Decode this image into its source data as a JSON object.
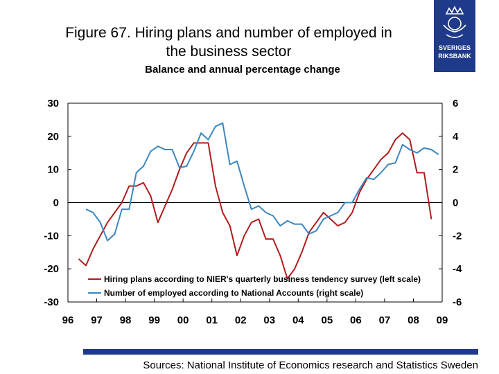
{
  "header": {
    "title_line1": "Figure 67. Hiring plans and number of employed in",
    "title_line2": "the business sector",
    "subtitle": "Balance and annual percentage change"
  },
  "logo": {
    "line1": "SVERIGES",
    "line2": "RIKSBANK",
    "color": "#1f3a8a"
  },
  "footer": {
    "sources": "Sources: National Institute of Economics research and Statistics Sweden",
    "bar_color": "#1f3a8a"
  },
  "chart_data": {
    "type": "line",
    "x_ticks": [
      "96",
      "97",
      "98",
      "99",
      "00",
      "01",
      "02",
      "03",
      "04",
      "05",
      "06",
      "07",
      "08",
      "09"
    ],
    "x_range": [
      1996,
      2009
    ],
    "y_left": {
      "range": [
        -30,
        30
      ],
      "ticks": [
        "30",
        "20",
        "10",
        "0",
        "-10",
        "-20",
        "-30"
      ]
    },
    "y_right": {
      "range": [
        -6,
        6
      ],
      "ticks": [
        "6",
        "4",
        "2",
        "0",
        "-2",
        "-4",
        "-6"
      ]
    },
    "grid": false,
    "legend_position": "bottom-left",
    "series": [
      {
        "name": "Hiring plans according to NIER's quarterly business tendency survey (left scale)",
        "axis": "left",
        "color": "#b01c1c",
        "points": [
          [
            1996.375,
            -17
          ],
          [
            1996.625,
            -19
          ],
          [
            1996.875,
            -14
          ],
          [
            1997.125,
            -10
          ],
          [
            1997.375,
            -6
          ],
          [
            1997.625,
            -3
          ],
          [
            1997.875,
            0
          ],
          [
            1998.125,
            5
          ],
          [
            1998.375,
            5
          ],
          [
            1998.625,
            6
          ],
          [
            1998.875,
            2
          ],
          [
            1999.125,
            -6
          ],
          [
            1999.375,
            -1
          ],
          [
            1999.625,
            4
          ],
          [
            1999.875,
            10
          ],
          [
            2000.125,
            15
          ],
          [
            2000.375,
            18
          ],
          [
            2000.625,
            18
          ],
          [
            2000.875,
            18
          ],
          [
            2001.125,
            5
          ],
          [
            2001.375,
            -3
          ],
          [
            2001.625,
            -7
          ],
          [
            2001.875,
            -16
          ],
          [
            2002.125,
            -10
          ],
          [
            2002.375,
            -6
          ],
          [
            2002.625,
            -5
          ],
          [
            2002.875,
            -11
          ],
          [
            2003.125,
            -11
          ],
          [
            2003.375,
            -16
          ],
          [
            2003.625,
            -23
          ],
          [
            2003.875,
            -20
          ],
          [
            2004.125,
            -15
          ],
          [
            2004.375,
            -9
          ],
          [
            2004.625,
            -6
          ],
          [
            2004.875,
            -3
          ],
          [
            2005.125,
            -5
          ],
          [
            2005.375,
            -7
          ],
          [
            2005.625,
            -6
          ],
          [
            2005.875,
            -3
          ],
          [
            2006.125,
            3
          ],
          [
            2006.375,
            7
          ],
          [
            2006.625,
            10
          ],
          [
            2006.875,
            13
          ],
          [
            2007.125,
            15
          ],
          [
            2007.375,
            19
          ],
          [
            2007.625,
            21
          ],
          [
            2007.875,
            19
          ],
          [
            2008.125,
            9
          ],
          [
            2008.375,
            9
          ],
          [
            2008.625,
            -5
          ]
        ]
      },
      {
        "name": "Number of employed according to National Accounts (right scale)",
        "axis": "right",
        "color": "#3a87c0",
        "points": [
          [
            1996.625,
            -0.4
          ],
          [
            1996.875,
            -0.6
          ],
          [
            1997.125,
            -1.2
          ],
          [
            1997.375,
            -2.3
          ],
          [
            1997.625,
            -1.9
          ],
          [
            1997.875,
            -0.4
          ],
          [
            1998.125,
            -0.4
          ],
          [
            1998.375,
            1.8
          ],
          [
            1998.625,
            2.2
          ],
          [
            1998.875,
            3.1
          ],
          [
            1999.125,
            3.4
          ],
          [
            1999.375,
            3.2
          ],
          [
            1999.625,
            3.2
          ],
          [
            1999.875,
            2.1
          ],
          [
            2000.125,
            2.2
          ],
          [
            2000.375,
            3.1
          ],
          [
            2000.625,
            4.2
          ],
          [
            2000.875,
            3.8
          ],
          [
            2001.125,
            4.6
          ],
          [
            2001.375,
            4.8
          ],
          [
            2001.625,
            2.3
          ],
          [
            2001.875,
            2.5
          ],
          [
            2002.125,
            1.0
          ],
          [
            2002.375,
            -0.4
          ],
          [
            2002.625,
            -0.2
          ],
          [
            2002.875,
            -0.6
          ],
          [
            2003.125,
            -0.8
          ],
          [
            2003.375,
            -1.4
          ],
          [
            2003.625,
            -1.1
          ],
          [
            2003.875,
            -1.3
          ],
          [
            2004.125,
            -1.3
          ],
          [
            2004.375,
            -1.9
          ],
          [
            2004.625,
            -1.7
          ],
          [
            2004.875,
            -1.0
          ],
          [
            2005.125,
            -0.8
          ],
          [
            2005.375,
            -0.6
          ],
          [
            2005.625,
            0.0
          ],
          [
            2005.875,
            0.0
          ],
          [
            2006.125,
            0.8
          ],
          [
            2006.375,
            1.5
          ],
          [
            2006.625,
            1.4
          ],
          [
            2006.875,
            1.8
          ],
          [
            2007.125,
            2.3
          ],
          [
            2007.375,
            2.4
          ],
          [
            2007.625,
            3.5
          ],
          [
            2007.875,
            3.2
          ],
          [
            2008.125,
            3.0
          ],
          [
            2008.375,
            3.3
          ],
          [
            2008.625,
            3.2
          ],
          [
            2008.875,
            2.9
          ]
        ]
      }
    ]
  }
}
